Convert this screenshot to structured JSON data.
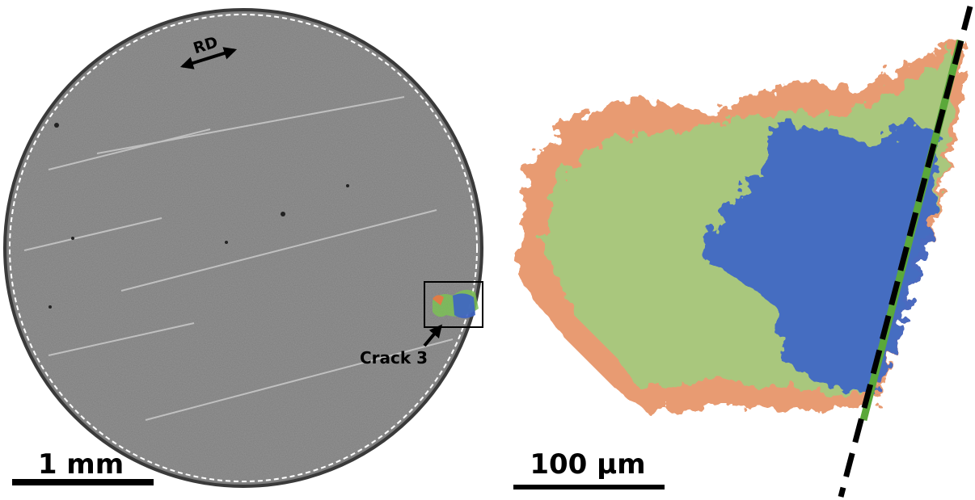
{
  "labels": {
    "rd": "RD",
    "crack": "Crack 3",
    "scale_left": "1 mm",
    "scale_right": "100 µm"
  }
}
